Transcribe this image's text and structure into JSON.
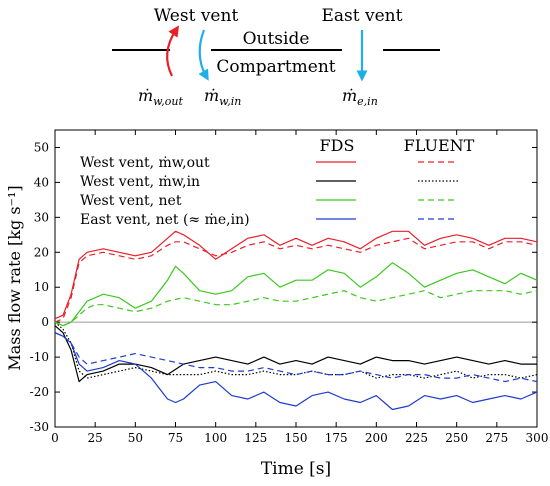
{
  "schematic": {
    "west_vent_label": "West vent",
    "east_vent_label": "East vent",
    "outside_label": "Outside",
    "compartment_label": "Compartment",
    "mw_out_label": "ṁ",
    "mw_out_sub": "w,out",
    "mw_in_label": "ṁ",
    "mw_in_sub": "w,in",
    "me_in_label": "ṁ",
    "me_in_sub": "e,in",
    "colors": {
      "red": "#e8202a",
      "blue": "#1eaee8"
    }
  },
  "chart_data": {
    "type": "line",
    "xlabel": "Time [s]",
    "ylabel": "Mass flow rate [kg s⁻¹]",
    "xlim": [
      0,
      300
    ],
    "ylim": [
      -30,
      55
    ],
    "xticks": [
      0,
      25,
      50,
      75,
      100,
      125,
      150,
      175,
      200,
      225,
      250,
      275,
      300
    ],
    "yticks": [
      -30,
      -20,
      -10,
      0,
      10,
      20,
      30,
      40,
      50
    ],
    "legend": {
      "header_fds": "FDS",
      "header_fluent": "FLUENT",
      "entries": [
        {
          "label": "West vent, ṁw,out",
          "color": "#e8202a"
        },
        {
          "label": "West vent, ṁw,in",
          "color": "#000000"
        },
        {
          "label": "West vent, net",
          "color": "#3cc81e"
        },
        {
          "label": "East vent, net (≈ ṁe,in)",
          "color": "#1e3ccd"
        }
      ]
    },
    "series": [
      {
        "name": "West vent, ṁw,out",
        "model": "FDS",
        "color": "#e8202a",
        "dash": "solid",
        "x": [
          0,
          5,
          10,
          15,
          20,
          30,
          40,
          50,
          60,
          70,
          75,
          80,
          90,
          100,
          110,
          120,
          130,
          140,
          150,
          160,
          170,
          180,
          190,
          200,
          210,
          220,
          230,
          240,
          250,
          260,
          270,
          280,
          290,
          300
        ],
        "y": [
          1,
          2,
          8,
          18,
          20,
          21,
          20,
          19,
          20,
          24,
          26,
          25,
          22,
          18,
          21,
          24,
          25,
          22,
          24,
          22,
          24,
          23,
          21,
          24,
          26,
          26,
          22,
          24,
          25,
          24,
          22,
          24,
          24,
          23
        ]
      },
      {
        "name": "West vent, ṁw,out",
        "model": "FLUENT",
        "color": "#e8202a",
        "dash": "dash",
        "x": [
          0,
          5,
          10,
          15,
          20,
          30,
          40,
          50,
          60,
          70,
          75,
          80,
          90,
          100,
          110,
          120,
          130,
          140,
          150,
          160,
          170,
          180,
          190,
          200,
          210,
          220,
          230,
          240,
          250,
          260,
          270,
          280,
          290,
          300
        ],
        "y": [
          0,
          1,
          7,
          17,
          19,
          20,
          19,
          18,
          19,
          22,
          23,
          23,
          21,
          19,
          20,
          22,
          23,
          21,
          22,
          21,
          22,
          21,
          20,
          22,
          23,
          24,
          21,
          22,
          23,
          23,
          21,
          23,
          23,
          22
        ]
      },
      {
        "name": "West vent, ṁw,in",
        "model": "FDS",
        "color": "#000000",
        "dash": "solid",
        "x": [
          0,
          5,
          10,
          15,
          20,
          30,
          40,
          50,
          60,
          70,
          80,
          90,
          100,
          110,
          120,
          130,
          140,
          150,
          160,
          170,
          180,
          190,
          200,
          210,
          220,
          230,
          240,
          250,
          260,
          270,
          280,
          290,
          300
        ],
        "y": [
          -1,
          -3,
          -8,
          -17,
          -15,
          -14,
          -12,
          -12,
          -13,
          -15,
          -12,
          -11,
          -10,
          -11,
          -12,
          -10,
          -12,
          -11,
          -12,
          -10,
          -11,
          -12,
          -10,
          -11,
          -11,
          -12,
          -11,
          -10,
          -11,
          -12,
          -11,
          -12,
          -12
        ]
      },
      {
        "name": "West vent, ṁw,in",
        "model": "FLUENT",
        "color": "#000000",
        "dash": "dot",
        "x": [
          0,
          5,
          10,
          15,
          20,
          30,
          40,
          50,
          60,
          70,
          80,
          90,
          100,
          110,
          120,
          130,
          140,
          150,
          160,
          170,
          180,
          190,
          200,
          210,
          220,
          230,
          240,
          250,
          260,
          270,
          280,
          290,
          300
        ],
        "y": [
          0,
          -2,
          -6,
          -14,
          -16,
          -15,
          -14,
          -13,
          -14,
          -15,
          -15,
          -15,
          -14,
          -15,
          -15,
          -14,
          -15,
          -15,
          -14,
          -15,
          -15,
          -14,
          -16,
          -15,
          -15,
          -16,
          -15,
          -14,
          -16,
          -15,
          -15,
          -16,
          -15
        ]
      },
      {
        "name": "West vent, net",
        "model": "FDS",
        "color": "#3cc81e",
        "dash": "solid",
        "x": [
          0,
          5,
          10,
          15,
          20,
          25,
          30,
          40,
          50,
          60,
          70,
          75,
          80,
          90,
          100,
          110,
          120,
          130,
          140,
          150,
          160,
          170,
          180,
          190,
          200,
          210,
          220,
          230,
          240,
          250,
          260,
          270,
          280,
          290,
          300
        ],
        "y": [
          0,
          -1,
          0,
          3,
          6,
          7,
          8,
          7,
          4,
          6,
          12,
          16,
          14,
          9,
          8,
          9,
          13,
          14,
          10,
          12,
          12,
          15,
          14,
          10,
          13,
          17,
          14,
          10,
          12,
          14,
          15,
          13,
          11,
          14,
          12
        ]
      },
      {
        "name": "West vent, net",
        "model": "FLUENT",
        "color": "#3cc81e",
        "dash": "dash",
        "x": [
          0,
          5,
          10,
          15,
          20,
          25,
          30,
          40,
          50,
          60,
          70,
          80,
          90,
          100,
          110,
          120,
          130,
          140,
          150,
          160,
          170,
          180,
          190,
          200,
          210,
          220,
          230,
          240,
          250,
          260,
          270,
          280,
          290,
          300
        ],
        "y": [
          0,
          -1,
          0,
          2,
          4,
          5,
          5,
          4,
          3,
          4,
          6,
          7,
          6,
          5,
          5,
          6,
          7,
          6,
          6,
          7,
          8,
          9,
          7,
          6,
          7,
          8,
          9,
          7,
          8,
          9,
          9,
          9,
          8,
          9
        ]
      },
      {
        "name": "East vent, net (≈ ṁe,in)",
        "model": "FDS",
        "color": "#1e3ccd",
        "dash": "solid",
        "x": [
          0,
          5,
          10,
          15,
          20,
          30,
          40,
          50,
          60,
          70,
          75,
          80,
          90,
          100,
          110,
          120,
          130,
          140,
          150,
          160,
          170,
          180,
          190,
          200,
          210,
          220,
          230,
          240,
          250,
          260,
          270,
          280,
          290,
          300
        ],
        "y": [
          -3,
          -4,
          -6,
          -12,
          -14,
          -13,
          -11,
          -12,
          -16,
          -22,
          -23,
          -22,
          -18,
          -17,
          -21,
          -22,
          -20,
          -23,
          -24,
          -21,
          -20,
          -22,
          -23,
          -21,
          -25,
          -24,
          -21,
          -22,
          -21,
          -23,
          -22,
          -21,
          -22,
          -20
        ]
      },
      {
        "name": "East vent, net (≈ ṁe,in)",
        "model": "FLUENT",
        "color": "#1e3ccd",
        "dash": "dash",
        "x": [
          0,
          5,
          10,
          15,
          20,
          30,
          40,
          50,
          60,
          70,
          80,
          90,
          100,
          110,
          120,
          130,
          140,
          150,
          160,
          170,
          180,
          190,
          200,
          210,
          220,
          230,
          240,
          250,
          260,
          270,
          280,
          290,
          300
        ],
        "y": [
          -3,
          -4,
          -6,
          -10,
          -12,
          -11,
          -10,
          -9,
          -10,
          -11,
          -12,
          -13,
          -13,
          -14,
          -14,
          -13,
          -14,
          -15,
          -14,
          -15,
          -15,
          -14,
          -15,
          -16,
          -15,
          -15,
          -16,
          -16,
          -15,
          -16,
          -17,
          -16,
          -17
        ]
      }
    ]
  }
}
